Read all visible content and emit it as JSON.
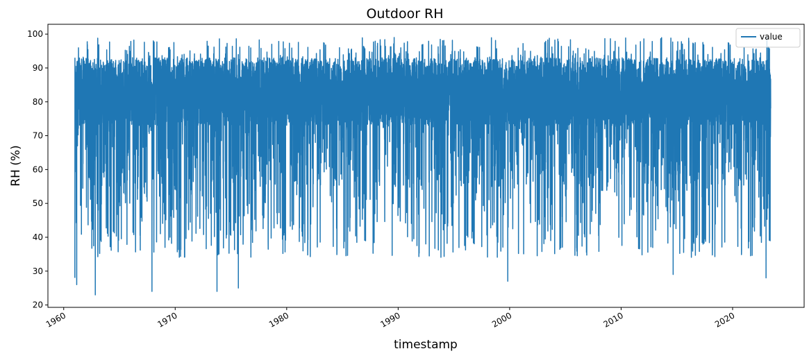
{
  "chart_data": {
    "type": "line",
    "title": "Outdoor RH",
    "xlabel": "timestamp",
    "ylabel": "RH (%)",
    "xlim": [
      "1958-08-01",
      "2026-06-01"
    ],
    "ylim": [
      19.3,
      102.9
    ],
    "x_ticks": [
      "1960",
      "1970",
      "1980",
      "1990",
      "2000",
      "2010",
      "2020"
    ],
    "y_ticks": [
      20,
      30,
      40,
      50,
      60,
      70,
      80,
      90,
      100
    ],
    "grid": false,
    "legend": {
      "position": "top-right",
      "entries": [
        "value"
      ]
    },
    "series": [
      {
        "name": "value",
        "color": "#1f77b4",
        "x_range": [
          "1961-01-01",
          "2023-06-01"
        ],
        "baseline_band": [
          73,
          93
        ],
        "y_max": 99,
        "y_min": 23,
        "notable_minima": [
          {
            "x": "1961-03",
            "y": 26
          },
          {
            "x": "1962-11",
            "y": 23
          },
          {
            "x": "1967-12",
            "y": 24
          },
          {
            "x": "1973-10",
            "y": 24
          },
          {
            "x": "1975-09",
            "y": 25
          },
          {
            "x": "1999-11",
            "y": 27
          },
          {
            "x": "2014-09",
            "y": 29
          },
          {
            "x": "2023-01",
            "y": 28
          }
        ]
      }
    ]
  }
}
